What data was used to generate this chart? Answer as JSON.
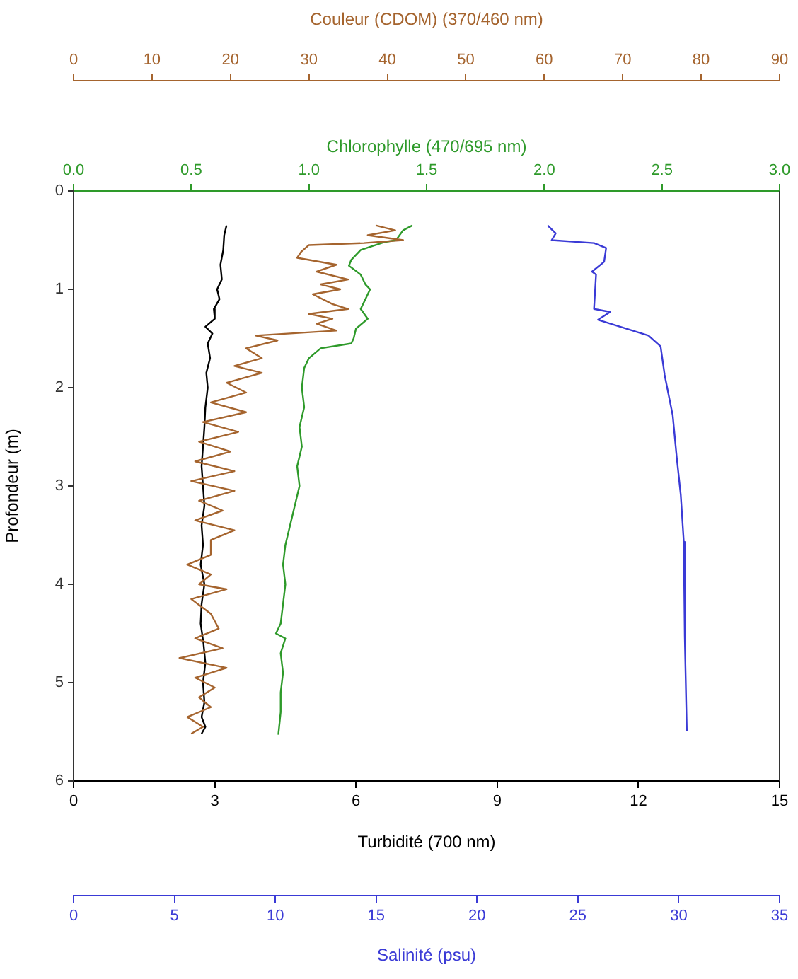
{
  "chart_data": [
    {
      "type": "line",
      "marker": "none",
      "line_style": "solid",
      "legend": false,
      "grid": false,
      "xlabel": "Turbidité (700 nm)",
      "xlim": [
        0,
        15
      ],
      "xticks": [
        0,
        3,
        6,
        9,
        12,
        15
      ],
      "x2label": "Chlorophylle (470/695 nm)",
      "x2lim": [
        0,
        3
      ],
      "x2ticks": [
        {
          "value": 0,
          "label": "0.0"
        },
        {
          "value": 0.5,
          "label": "0.5"
        },
        {
          "value": 1,
          "label": "1.0"
        },
        {
          "value": 1.5,
          "label": "1.5"
        },
        {
          "value": 2,
          "label": "2.0"
        },
        {
          "value": 2.5,
          "label": "2.5"
        },
        {
          "value": 3,
          "label": "3.0"
        }
      ],
      "ylabel": "Profondeur (m)",
      "ylim": [
        6,
        0
      ],
      "yticks": [
        0,
        1,
        2,
        3,
        4,
        5,
        6
      ],
      "series": [
        {
          "color": "#000000",
          "x": [
            3.25,
            3.2,
            3.18,
            3.12,
            3.15,
            3.05,
            3.1,
            2.98,
            3.0,
            2.8,
            2.95,
            2.85,
            2.9,
            2.82,
            2.85,
            2.8,
            2.78,
            2.75,
            2.72,
            2.75,
            2.78,
            2.72,
            2.75,
            2.7,
            2.78,
            2.72,
            2.7,
            2.76,
            2.8,
            2.75,
            2.78,
            2.72,
            2.8,
            2.72
          ],
          "values": [
            0.35,
            0.45,
            0.6,
            0.75,
            0.9,
            1.0,
            1.1,
            1.2,
            1.3,
            1.38,
            1.45,
            1.55,
            1.7,
            1.85,
            2.0,
            2.2,
            2.4,
            2.6,
            2.8,
            3.0,
            3.2,
            3.4,
            3.6,
            3.8,
            4.0,
            4.2,
            4.4,
            4.6,
            4.8,
            5.0,
            5.2,
            5.35,
            5.45,
            5.52
          ]
        },
        {
          "color": "#2e9a2a",
          "axis": "x2",
          "x": [
            1.44,
            1.4,
            1.37,
            1.32,
            1.22,
            1.18,
            1.17,
            1.22,
            1.24,
            1.26,
            1.24,
            1.22,
            1.25,
            1.2,
            1.19,
            1.18,
            1.05,
            1.0,
            0.98,
            0.97,
            0.98,
            0.96,
            0.97,
            0.95,
            0.96,
            0.94,
            0.92,
            0.9,
            0.89,
            0.9,
            0.89,
            0.88,
            0.86,
            0.9,
            0.88,
            0.89,
            0.88,
            0.88,
            0.87
          ],
          "values": [
            0.35,
            0.4,
            0.5,
            0.52,
            0.6,
            0.7,
            0.76,
            0.85,
            0.95,
            1.0,
            1.1,
            1.2,
            1.3,
            1.4,
            1.5,
            1.55,
            1.6,
            1.7,
            1.8,
            2.0,
            2.2,
            2.4,
            2.6,
            2.8,
            3.0,
            3.2,
            3.4,
            3.6,
            3.8,
            4.0,
            4.2,
            4.4,
            4.5,
            4.55,
            4.7,
            4.9,
            5.1,
            5.3,
            5.53
          ]
        }
      ]
    },
    {
      "type": "line",
      "marker": "none",
      "line_style": "solid",
      "legend": false,
      "grid": false,
      "tick_labels": "x",
      "xlabel": "Salinité (psu)",
      "xlim": [
        0,
        35
      ],
      "xticks": [
        0,
        5,
        10,
        15,
        20,
        25,
        30,
        35
      ],
      "x2label": "Couleur (CDOM) (370/460 nm)",
      "x2lim": [
        0,
        90
      ],
      "x2ticks": [
        0,
        10,
        20,
        30,
        40,
        50,
        60,
        70,
        80,
        90
      ],
      "ylim": [
        6,
        0
      ],
      "series": [
        {
          "color": "#3a3ad6",
          "x": [
            23.5,
            23.9,
            23.7,
            25.8,
            26.4,
            26.3,
            25.7,
            25.9,
            25.8,
            26.6,
            26.0,
            28.5,
            29.1,
            29.3,
            29.7,
            29.9,
            30.1,
            30.25,
            30.3,
            30.4
          ],
          "values": [
            0.35,
            0.43,
            0.5,
            0.53,
            0.58,
            0.72,
            0.82,
            0.85,
            1.2,
            1.23,
            1.31,
            1.47,
            1.58,
            1.87,
            2.28,
            2.71,
            3.09,
            3.57,
            4.53,
            5.49
          ]
        },
        {
          "color": "#a5642e",
          "axis": "x2",
          "x": [
            38.5,
            41,
            37.5,
            42,
            37,
            30,
            29,
            28.5,
            33.5,
            31,
            35,
            31.5,
            34,
            30.5,
            33,
            35,
            30,
            33,
            31,
            33.5,
            23.2,
            26,
            22,
            24,
            20.5,
            24,
            19.5,
            22,
            17.5,
            22,
            16.5,
            21,
            16,
            20,
            15.5,
            20.5,
            15,
            20.5,
            16,
            19,
            15.5,
            20.5,
            17.5,
            17.5,
            14.5,
            17.5,
            16,
            19.5,
            15,
            17.5,
            18.5,
            15.5,
            19,
            13.5,
            19.5,
            15.5,
            18,
            16,
            17.5,
            14.5,
            16.5,
            15
          ],
          "values": [
            0.35,
            0.4,
            0.45,
            0.5,
            0.53,
            0.55,
            0.62,
            0.68,
            0.75,
            0.82,
            0.9,
            0.95,
            1.0,
            1.05,
            1.15,
            1.2,
            1.25,
            1.3,
            1.35,
            1.42,
            1.47,
            1.52,
            1.6,
            1.7,
            1.78,
            1.85,
            1.95,
            2.05,
            2.15,
            2.25,
            2.35,
            2.45,
            2.55,
            2.65,
            2.75,
            2.85,
            2.95,
            3.05,
            3.15,
            3.25,
            3.35,
            3.45,
            3.55,
            3.7,
            3.8,
            3.9,
            4.0,
            4.05,
            4.15,
            4.3,
            4.45,
            4.55,
            4.65,
            4.75,
            4.85,
            4.95,
            5.05,
            5.15,
            5.25,
            5.35,
            5.45,
            5.52
          ]
        }
      ]
    }
  ]
}
